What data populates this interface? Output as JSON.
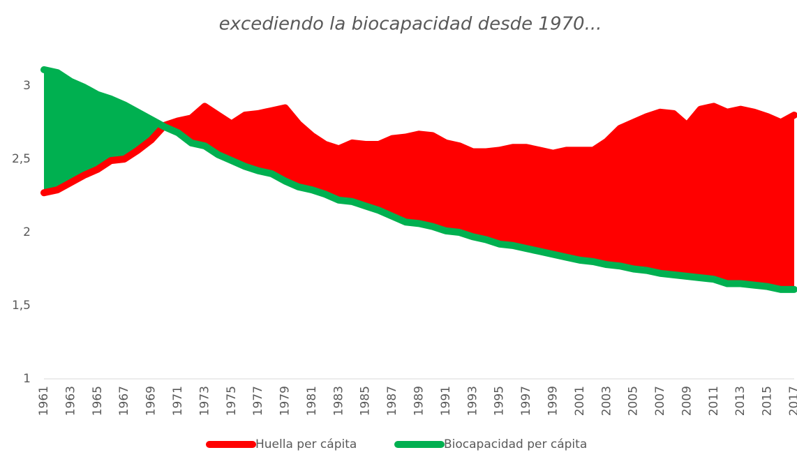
{
  "chart_data": {
    "type": "line",
    "title": "excediendo la biocapacidad desde 1970...",
    "categories": [
      "1961",
      null,
      "1963",
      null,
      "1965",
      null,
      "1967",
      null,
      "1969",
      null,
      "1971",
      null,
      "1973",
      null,
      "1975",
      null,
      "1977",
      null,
      "1979",
      null,
      "1981",
      null,
      "1983",
      null,
      "1985",
      null,
      "1987",
      null,
      "1989",
      null,
      "1991",
      null,
      "1993",
      null,
      "1995",
      null,
      "1997",
      null,
      "1999",
      null,
      "2001",
      null,
      "2003",
      null,
      "2005",
      null,
      "2007",
      null,
      "2009",
      null,
      "2011",
      null,
      "2013",
      null,
      "2015",
      null,
      "2017"
    ],
    "series": [
      {
        "name": "Huella per cápita",
        "color": "#ff0000",
        "values": [
          2.27,
          2.29,
          2.34,
          2.39,
          2.43,
          2.49,
          2.5,
          2.56,
          2.63,
          2.73,
          2.76,
          2.78,
          2.86,
          2.8,
          2.74,
          2.8,
          2.81,
          2.83,
          2.85,
          2.74,
          2.66,
          2.6,
          2.57,
          2.61,
          2.6,
          2.6,
          2.64,
          2.65,
          2.67,
          2.66,
          2.61,
          2.59,
          2.55,
          2.55,
          2.56,
          2.58,
          2.58,
          2.56,
          2.54,
          2.56,
          2.56,
          2.56,
          2.62,
          2.71,
          2.75,
          2.79,
          2.82,
          2.81,
          2.73,
          2.84,
          2.86,
          2.82,
          2.84,
          2.82,
          2.79,
          2.75,
          2.8
        ]
      },
      {
        "name": "Biocapacidad per cápita",
        "color": "#00b050",
        "values": [
          3.11,
          3.09,
          3.03,
          2.99,
          2.94,
          2.91,
          2.87,
          2.82,
          2.77,
          2.72,
          2.68,
          2.61,
          2.59,
          2.53,
          2.49,
          2.45,
          2.42,
          2.4,
          2.35,
          2.31,
          2.29,
          2.26,
          2.22,
          2.21,
          2.18,
          2.15,
          2.11,
          2.07,
          2.06,
          2.04,
          2.01,
          2.0,
          1.97,
          1.95,
          1.92,
          1.91,
          1.89,
          1.87,
          1.85,
          1.83,
          1.81,
          1.8,
          1.78,
          1.77,
          1.75,
          1.74,
          1.72,
          1.71,
          1.7,
          1.69,
          1.68,
          1.65,
          1.65,
          1.64,
          1.63,
          1.61,
          1.61
        ]
      }
    ],
    "ylim": [
      1,
      3.2
    ],
    "yticks": [
      1,
      {
        "value": 1.5,
        "label": "1,5"
      },
      2,
      {
        "value": 2.5,
        "label": "2,5"
      },
      3
    ],
    "grid": false,
    "legend": "bottom"
  }
}
